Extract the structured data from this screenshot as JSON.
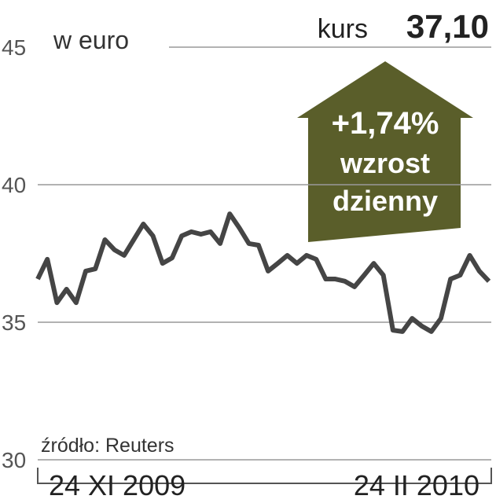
{
  "chart_data": {
    "type": "line",
    "ylabel": "w euro",
    "headline_label": "kurs",
    "headline_value": "37,10",
    "arrow_lines": [
      "+1,74%",
      "wzrost",
      "dzienny"
    ],
    "source": "źródło: Reuters",
    "categories": [
      "24 XI 2009",
      null,
      null,
      null,
      null,
      null,
      null,
      null,
      null,
      null,
      null,
      null,
      null,
      null,
      null,
      null,
      null,
      null,
      null,
      null,
      null,
      null,
      null,
      null,
      null,
      null,
      null,
      null,
      null,
      null,
      null,
      null,
      null,
      null,
      null,
      null,
      null,
      null,
      null,
      null,
      null,
      null,
      null,
      null,
      null,
      null,
      null,
      "24 II 2010"
    ],
    "series": [
      {
        "name": null,
        "color": "#454545",
        "values": [
          36.57,
          37.29,
          35.71,
          36.2,
          35.71,
          36.86,
          36.94,
          38.0,
          37.63,
          37.43,
          38.0,
          38.57,
          38.14,
          37.14,
          37.34,
          38.14,
          38.29,
          38.2,
          38.29,
          37.86,
          38.94,
          38.43,
          37.86,
          37.8,
          36.86,
          37.14,
          37.43,
          37.14,
          37.43,
          37.29,
          36.57,
          36.57,
          36.49,
          36.29,
          36.71,
          37.14,
          36.71,
          34.71,
          34.66,
          35.14,
          34.86,
          34.66,
          35.14,
          36.57,
          36.71,
          37.43,
          36.86,
          36.49
        ]
      }
    ],
    "ylim": [
      30,
      45
    ],
    "yticks": [
      30,
      35,
      40,
      45
    ],
    "grid": true
  }
}
